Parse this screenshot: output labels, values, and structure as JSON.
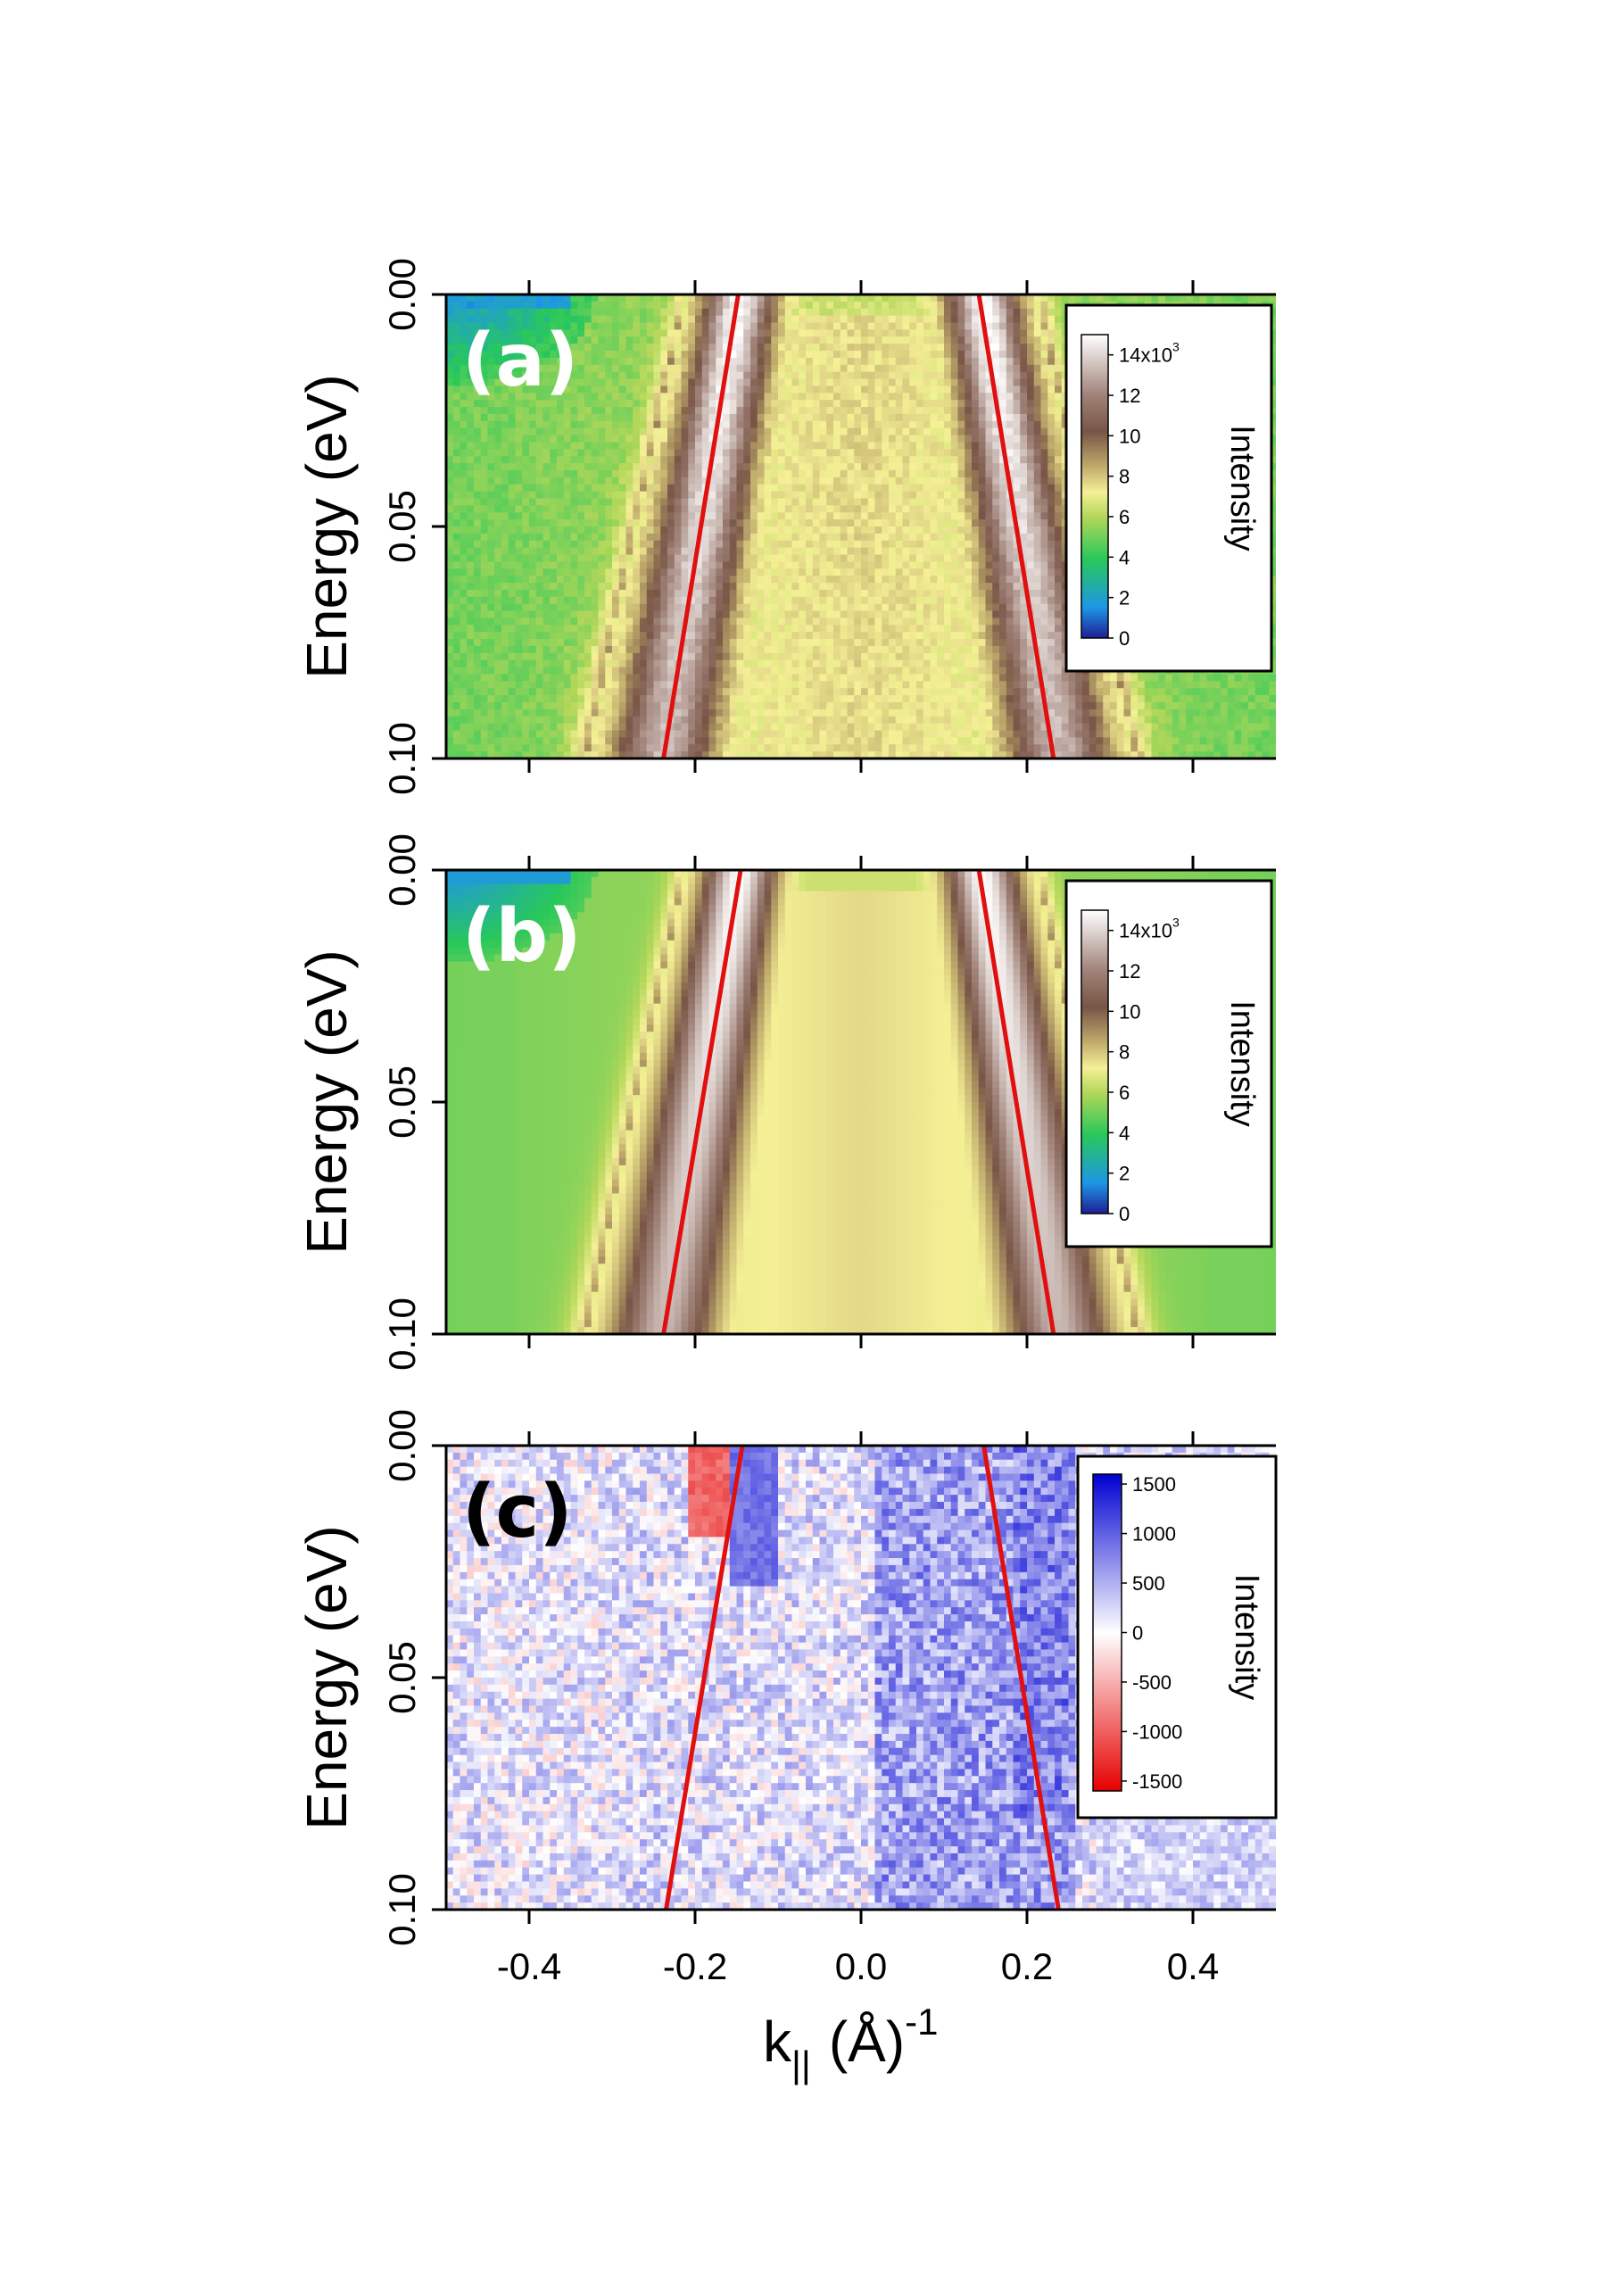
{
  "chart_data": [
    {
      "type": "heatmap",
      "panel_label": "(a)",
      "ylabel": "Energy (eV)",
      "xlabel": "",
      "xlim": [
        -0.5,
        0.5
      ],
      "ylim": [
        0.1,
        0.0
      ],
      "x_ticks": [
        -0.4,
        -0.2,
        0.0,
        0.2,
        0.4
      ],
      "y_tick_labels": [
        "0.00",
        "0.05",
        "0.10"
      ],
      "y_tick_values": [
        0.0,
        0.05,
        0.1
      ],
      "colorbar": {
        "title": "Intensity",
        "colormap": "green-yellow-brown-white",
        "tick_labels": [
          "14x10",
          "12",
          "10",
          "8",
          "6",
          "4",
          "2",
          "0"
        ],
        "tick_values": [
          14,
          12,
          10,
          8,
          6,
          4,
          2,
          0
        ],
        "exponent": "3",
        "range": [
          0,
          15
        ]
      },
      "dispersion_lines": [
        {
          "color": "#e01010",
          "points": [
            [
              -0.238,
              0.1
            ],
            [
              -0.148,
              0.0
            ]
          ]
        },
        {
          "color": "#e01010",
          "points": [
            [
              0.232,
              0.1
            ],
            [
              0.142,
              0.0
            ]
          ]
        }
      ],
      "band_centers": [
        -0.185,
        0.185
      ],
      "noisy": true
    },
    {
      "type": "heatmap",
      "panel_label": "(b)",
      "ylabel": "Energy (eV)",
      "xlabel": "",
      "xlim": [
        -0.5,
        0.5
      ],
      "ylim": [
        0.1,
        0.0
      ],
      "x_ticks": [
        -0.4,
        -0.2,
        0.0,
        0.2,
        0.4
      ],
      "y_tick_labels": [
        "0.00",
        "0.05",
        "0.10"
      ],
      "y_tick_values": [
        0.0,
        0.05,
        0.1
      ],
      "colorbar": {
        "title": "Intensity",
        "colormap": "green-yellow-brown-white",
        "tick_labels": [
          "14x10",
          "12",
          "10",
          "8",
          "6",
          "4",
          "2",
          "0"
        ],
        "tick_values": [
          14,
          12,
          10,
          8,
          6,
          4,
          2,
          0
        ],
        "exponent": "3",
        "range": [
          0,
          15
        ]
      },
      "dispersion_lines": [
        {
          "color": "#e01010",
          "points": [
            [
              -0.238,
              0.1
            ],
            [
              -0.145,
              0.0
            ]
          ]
        },
        {
          "color": "#e01010",
          "points": [
            [
              0.232,
              0.1
            ],
            [
              0.142,
              0.0
            ]
          ]
        }
      ],
      "band_centers": [
        -0.185,
        0.185
      ],
      "noisy": false
    },
    {
      "type": "heatmap",
      "panel_label": "(c)",
      "ylabel": "Energy (eV)",
      "xlabel": "k",
      "xlabel_sub": "||",
      "xlabel_unit": "(Å)",
      "xlabel_sup": "-1",
      "xlim": [
        -0.5,
        0.5
      ],
      "ylim": [
        0.1,
        0.0
      ],
      "x_ticks": [
        -0.4,
        -0.2,
        0.0,
        0.2,
        0.4
      ],
      "x_tick_labels": [
        "-0.4",
        "-0.2",
        "0.0",
        "0.2",
        "0.4"
      ],
      "y_tick_labels": [
        "0.00",
        "0.05",
        "0.10"
      ],
      "y_tick_values": [
        0.0,
        0.05,
        0.1
      ],
      "colorbar": {
        "title": "Intensity",
        "colormap": "red-white-blue",
        "tick_labels": [
          "1500",
          "1000",
          "500",
          "0",
          "-500",
          "-1000",
          "-1500"
        ],
        "tick_values": [
          1500,
          1000,
          500,
          0,
          -500,
          -1000,
          -1500
        ],
        "range": [
          -1600,
          1600
        ]
      },
      "dispersion_lines": [
        {
          "color": "#e01010",
          "points": [
            [
              -0.235,
              0.1
            ],
            [
              -0.143,
              0.0
            ]
          ]
        },
        {
          "color": "#e01010",
          "points": [
            [
              0.238,
              0.1
            ],
            [
              0.148,
              0.0
            ]
          ]
        }
      ],
      "noisy": true
    }
  ]
}
